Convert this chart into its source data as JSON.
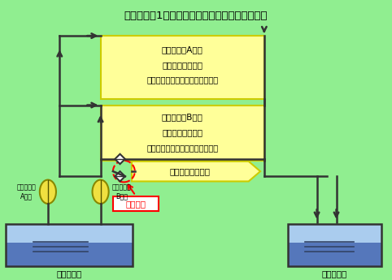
{
  "title": "伊方発電所1号機　海水ポンプまわり系統概略図",
  "bg_color": "#90ee90",
  "box_A_line1": "１次系補機A系統",
  "box_A_line2": "原子炉補機冷却器",
  "box_A_line3": "（非常用ディーゼル発電機　等）",
  "box_B_line1": "１次系補機B系統",
  "box_B_line2": "原子炉補機冷却器",
  "box_B_line3": "（非常用ディーゼル発電機　等）",
  "box_2nd_text": "２次系補機冷却用",
  "label_pump_A": "海水ポンプ\nA系統",
  "label_pump_B": "海水ポンプ\nB系統",
  "label_intake": "取水ビット",
  "label_discharge": "放水ビット",
  "label_location": "当該箇所",
  "yellow_fill": "#ffff99",
  "yellow_border": "#cccc00",
  "pump_color": "#f0e040",
  "pump_border": "#888800",
  "water_color_top": "#aaccee",
  "water_color_bottom": "#5577bb",
  "water_line_color": "#334466",
  "pit_border": "#333333",
  "line_color": "#333333",
  "red_color": "#ff0000",
  "white": "#ffffff"
}
